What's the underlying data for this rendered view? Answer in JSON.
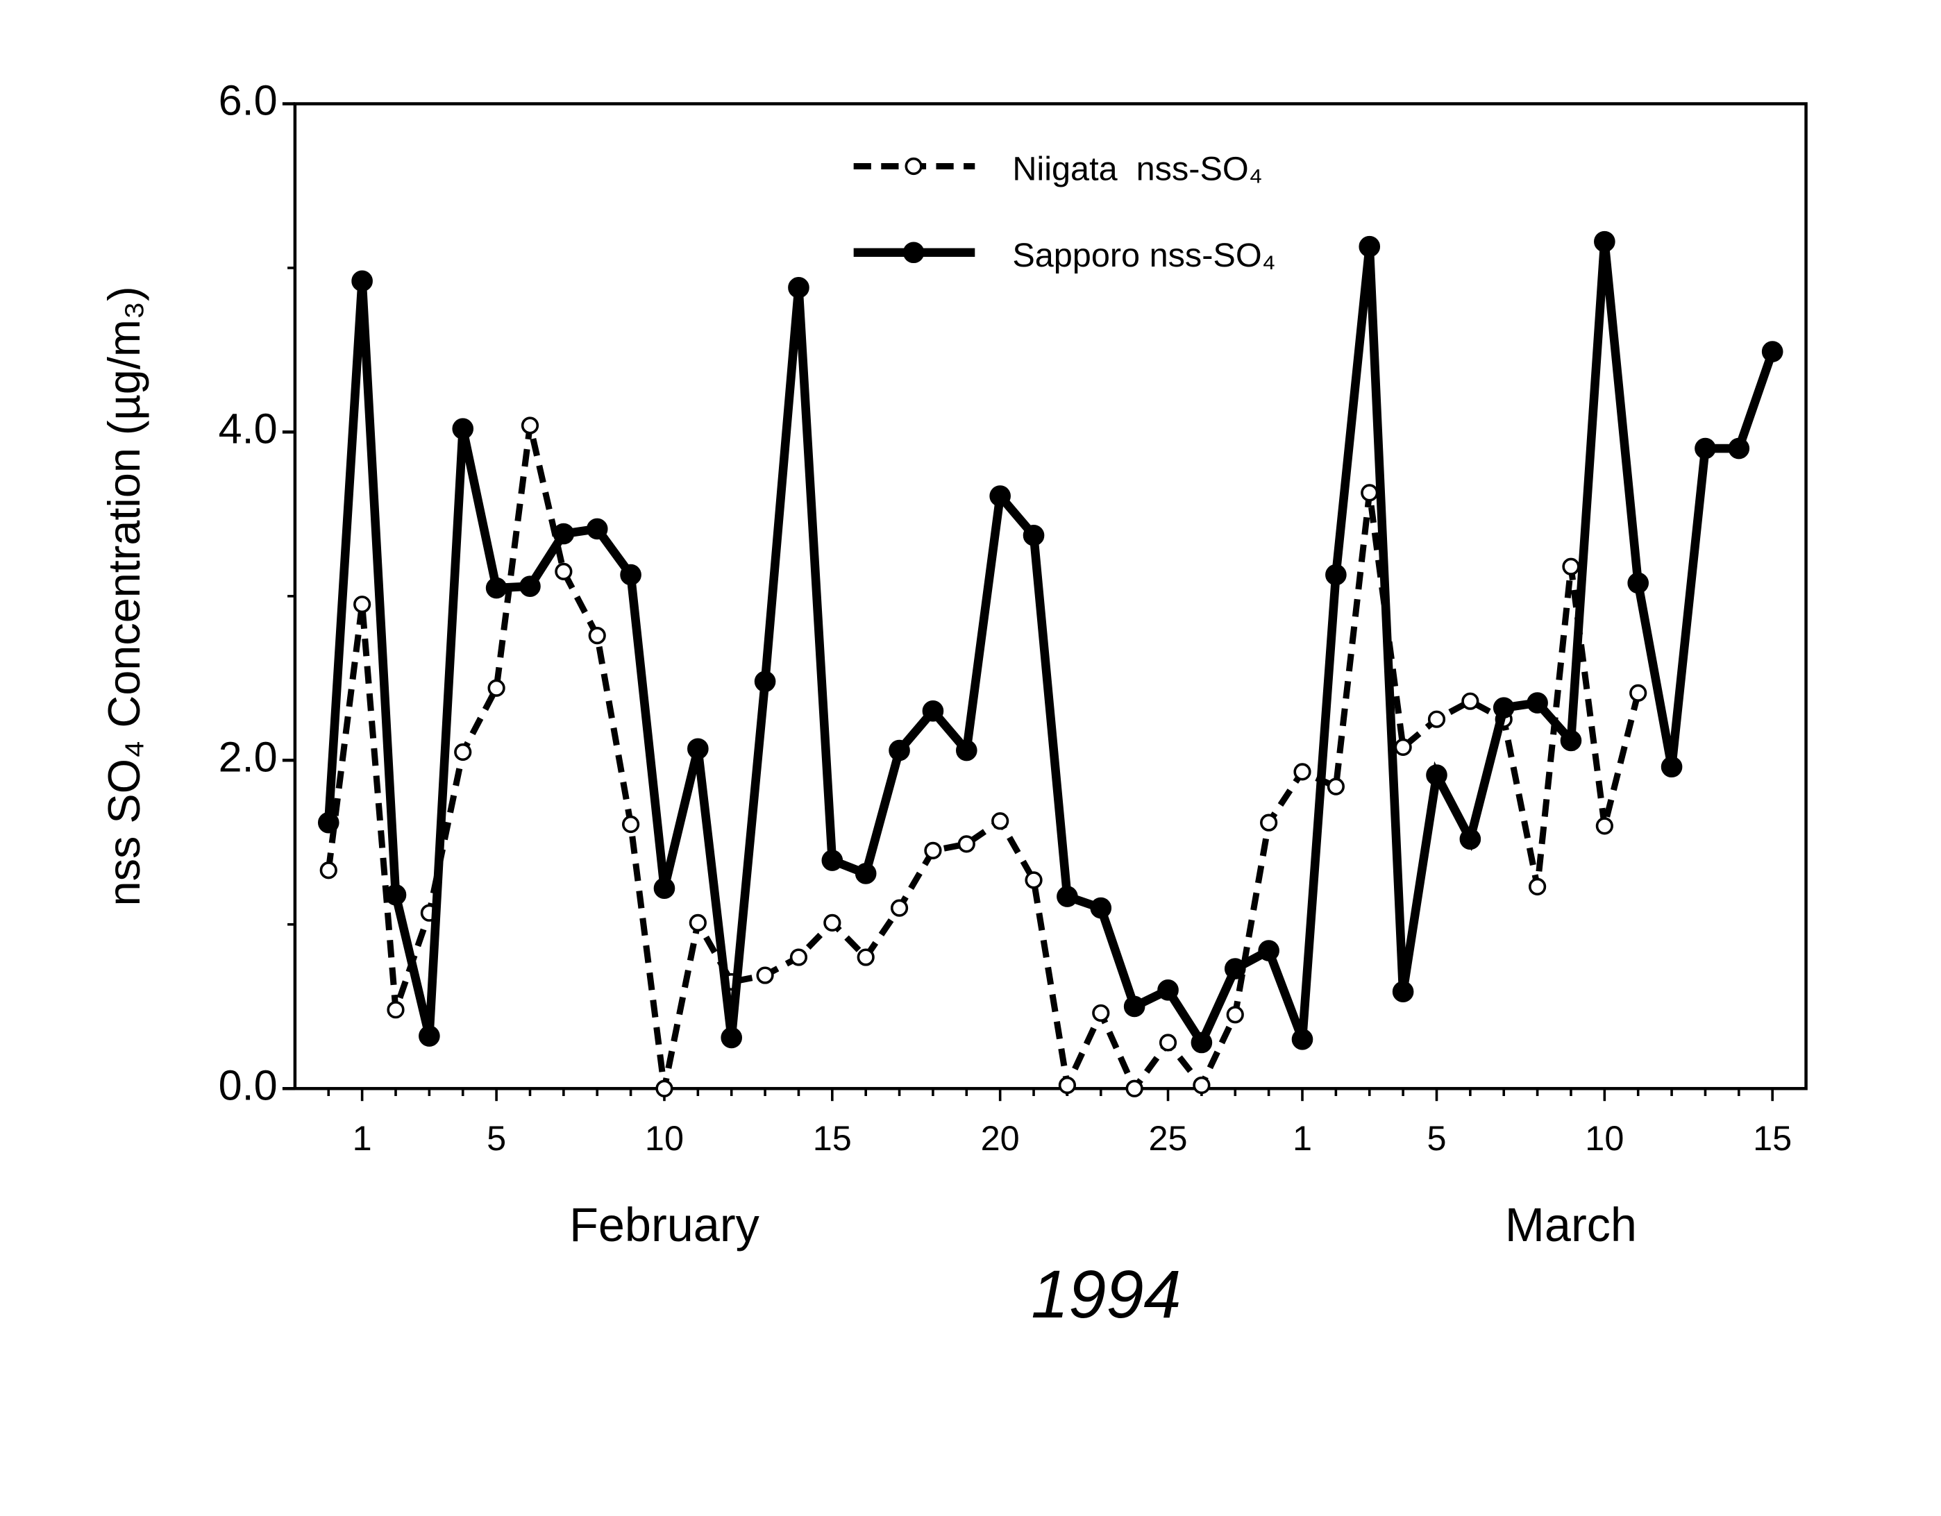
{
  "chart_data": {
    "type": "line",
    "ylabel": "nss SO₄ Concentration (µg/m₃)",
    "xlabel": "1994",
    "month_labels": [
      {
        "value": 10,
        "label": "February"
      },
      {
        "value": 37,
        "label": "March"
      }
    ],
    "categories": [
      null,
      "1",
      null,
      null,
      null,
      "5",
      null,
      null,
      null,
      null,
      "10",
      null,
      null,
      null,
      null,
      "15",
      null,
      null,
      null,
      null,
      "20",
      null,
      null,
      null,
      null,
      "25",
      null,
      null,
      null,
      "1",
      null,
      null,
      null,
      "5",
      null,
      null,
      null,
      null,
      "10",
      null,
      null,
      null,
      null,
      "15"
    ],
    "xlim": [
      -1,
      44
    ],
    "ylim": [
      0,
      6
    ],
    "yticks": [
      {
        "value": 0,
        "label": "0.0"
      },
      {
        "value": 2,
        "label": "2.0"
      },
      {
        "value": 4,
        "label": "4.0"
      },
      {
        "value": 6,
        "label": "6.0"
      }
    ],
    "yticks_minor": [
      1,
      3,
      5
    ],
    "grid": false,
    "legend": "top",
    "series": [
      {
        "name": "Niigata  nss-SO₄",
        "color": "#000000",
        "dash": true,
        "marker": "open",
        "values": [
          1.33,
          2.95,
          0.48,
          1.07,
          2.05,
          2.44,
          4.04,
          3.15,
          2.76,
          1.61,
          0.0,
          1.01,
          0.65,
          0.69,
          0.8,
          1.01,
          0.8,
          1.1,
          1.45,
          1.49,
          1.63,
          1.27,
          0.02,
          0.46,
          0.0,
          0.28,
          0.02,
          0.45,
          1.62,
          1.93,
          1.84,
          3.63,
          2.08,
          2.25,
          2.36,
          2.25,
          1.23,
          3.18,
          1.6,
          2.41,
          null,
          null,
          null,
          null
        ]
      },
      {
        "name": "Sapporo nss-SO₄",
        "color": "#000000",
        "dash": false,
        "marker": "filled",
        "values": [
          1.62,
          4.92,
          1.18,
          0.32,
          4.02,
          3.05,
          3.06,
          3.38,
          3.41,
          3.13,
          1.22,
          2.07,
          0.31,
          2.48,
          4.88,
          1.39,
          1.31,
          2.06,
          2.3,
          2.06,
          3.61,
          3.37,
          1.17,
          1.1,
          0.5,
          0.6,
          0.28,
          0.73,
          0.84,
          0.3,
          3.13,
          5.13,
          0.59,
          1.91,
          1.52,
          2.32,
          2.35,
          2.12,
          5.16,
          3.08,
          1.96,
          3.9,
          3.9,
          4.49
        ]
      }
    ]
  }
}
